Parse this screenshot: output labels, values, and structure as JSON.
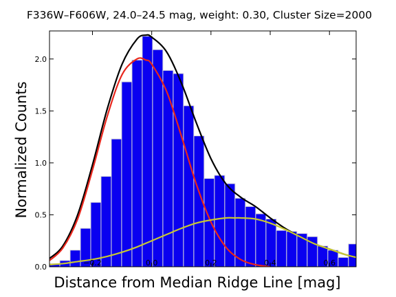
{
  "chart_data": {
    "type": "bar",
    "title": "F336W–F606W, 24.0–24.5 mag, weight: 0.30, Cluster Size=2000",
    "xlabel": "Distance from Median Ridge Line [mag]",
    "ylabel": "Normalized Counts",
    "xlim": [
      -0.345,
      0.69
    ],
    "ylim": [
      0,
      2.27
    ],
    "xticks": [
      -0.2,
      0.0,
      0.2,
      0.4,
      0.6
    ],
    "xtick_labels": [
      "−0.2",
      "0.0",
      "0.2",
      "0.4",
      "0.6"
    ],
    "yticks": [
      0.0,
      0.5,
      1.0,
      1.5,
      2.0
    ],
    "ytick_labels": [
      "0.0",
      "0.5",
      "1.0",
      "1.5",
      "2.0"
    ],
    "grid": false,
    "bin_width": 0.0348,
    "bins": [
      {
        "left": -0.345,
        "value": 0.03
      },
      {
        "left": -0.3102,
        "value": 0.06
      },
      {
        "left": -0.2754,
        "value": 0.16
      },
      {
        "left": -0.2406,
        "value": 0.37
      },
      {
        "left": -0.2058,
        "value": 0.62
      },
      {
        "left": -0.1711,
        "value": 0.87
      },
      {
        "left": -0.1363,
        "value": 1.23
      },
      {
        "left": -0.1015,
        "value": 1.78
      },
      {
        "left": -0.0667,
        "value": 1.99
      },
      {
        "left": -0.0319,
        "value": 2.22
      },
      {
        "left": 0.0029,
        "value": 2.09
      },
      {
        "left": 0.0377,
        "value": 1.89
      },
      {
        "left": 0.0725,
        "value": 1.86
      },
      {
        "left": 0.1073,
        "value": 1.55
      },
      {
        "left": 0.1421,
        "value": 1.26
      },
      {
        "left": 0.1769,
        "value": 0.85
      },
      {
        "left": 0.2117,
        "value": 0.88
      },
      {
        "left": 0.2465,
        "value": 0.8
      },
      {
        "left": 0.2813,
        "value": 0.66
      },
      {
        "left": 0.3161,
        "value": 0.58
      },
      {
        "left": 0.3509,
        "value": 0.51
      },
      {
        "left": 0.3857,
        "value": 0.46
      },
      {
        "left": 0.4205,
        "value": 0.35
      },
      {
        "left": 0.4553,
        "value": 0.34
      },
      {
        "left": 0.4901,
        "value": 0.32
      },
      {
        "left": 0.5249,
        "value": 0.29
      },
      {
        "left": 0.5597,
        "value": 0.2
      },
      {
        "left": 0.5945,
        "value": 0.16
      },
      {
        "left": 0.6293,
        "value": 0.09
      },
      {
        "left": 0.6641,
        "value": 0.22
      }
    ],
    "curves": [
      {
        "color": "#000000",
        "x": [
          -0.345,
          -0.3,
          -0.25,
          -0.2,
          -0.15,
          -0.1,
          -0.05,
          -0.02,
          0.0,
          0.05,
          0.1,
          0.15,
          0.2,
          0.25,
          0.3,
          0.35,
          0.4,
          0.45,
          0.5,
          0.55,
          0.6,
          0.65,
          0.69
        ],
        "y": [
          0.08,
          0.2,
          0.5,
          0.98,
          1.52,
          1.95,
          2.19,
          2.23,
          2.21,
          2.07,
          1.77,
          1.39,
          1.04,
          0.8,
          0.67,
          0.58,
          0.47,
          0.37,
          0.29,
          0.22,
          0.17,
          0.12,
          0.09
        ]
      },
      {
        "color": "#e8261c",
        "x": [
          -0.345,
          -0.3,
          -0.25,
          -0.2,
          -0.15,
          -0.1,
          -0.05,
          -0.02,
          0.0,
          0.05,
          0.1,
          0.15,
          0.2,
          0.25,
          0.3,
          0.35,
          0.4
        ],
        "y": [
          0.06,
          0.18,
          0.46,
          0.93,
          1.45,
          1.85,
          2.0,
          1.99,
          1.95,
          1.69,
          1.26,
          0.8,
          0.43,
          0.19,
          0.07,
          0.02,
          0.0
        ]
      },
      {
        "color": "#c8c832",
        "x": [
          -0.345,
          -0.3,
          -0.25,
          -0.2,
          -0.15,
          -0.1,
          -0.05,
          0.0,
          0.05,
          0.1,
          0.15,
          0.2,
          0.25,
          0.28,
          0.3,
          0.35,
          0.4,
          0.45,
          0.5,
          0.55,
          0.6,
          0.65,
          0.69
        ],
        "y": [
          0.02,
          0.03,
          0.05,
          0.07,
          0.1,
          0.14,
          0.19,
          0.25,
          0.31,
          0.37,
          0.42,
          0.45,
          0.47,
          0.47,
          0.47,
          0.46,
          0.42,
          0.36,
          0.29,
          0.22,
          0.17,
          0.12,
          0.09
        ]
      }
    ],
    "colors": {
      "bar_fill": "#0a00f0",
      "bar_edge": "#d8d8d8"
    }
  }
}
